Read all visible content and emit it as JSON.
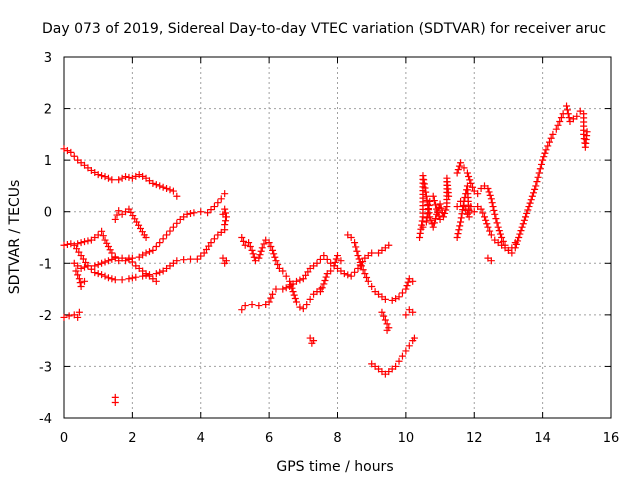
{
  "chart_data": {
    "type": "scatter",
    "title": "Day 073 of 2019, Sidereal Day-to-day VTEC variation (SDTVAR) for receiver aruc",
    "xlabel": "GPS time / hours",
    "ylabel": "SDTVAR / TECUs",
    "xlim": [
      0,
      16
    ],
    "ylim": [
      -4,
      3
    ],
    "xticks": [
      "0",
      "2",
      "4",
      "6",
      "8",
      "10",
      "12",
      "14",
      "16"
    ],
    "yticks": [
      "-4",
      "-3",
      "-2",
      "-1",
      "0",
      "1",
      "2",
      "3"
    ],
    "grid": true,
    "marker": "+",
    "color": "#ff0000",
    "series": [
      {
        "points": [
          [
            0.0,
            1.22
          ],
          [
            0.2,
            1.15
          ],
          [
            0.4,
            1.0
          ],
          [
            0.6,
            0.9
          ],
          [
            0.8,
            0.8
          ],
          [
            1.0,
            0.72
          ],
          [
            1.2,
            0.68
          ],
          [
            1.4,
            0.62
          ],
          [
            1.6,
            0.62
          ],
          [
            1.8,
            0.68
          ],
          [
            2.0,
            0.65
          ],
          [
            2.2,
            0.72
          ],
          [
            2.4,
            0.65
          ],
          [
            2.6,
            0.55
          ],
          [
            2.8,
            0.5
          ],
          [
            3.0,
            0.45
          ],
          [
            3.2,
            0.4
          ],
          [
            3.3,
            0.3
          ]
        ]
      },
      {
        "points": [
          [
            0.0,
            -0.65
          ],
          [
            0.2,
            -0.62
          ],
          [
            0.4,
            -0.62
          ],
          [
            0.6,
            -0.58
          ],
          [
            0.8,
            -0.55
          ],
          [
            1.0,
            -0.45
          ],
          [
            1.1,
            -0.38
          ],
          [
            1.2,
            -0.55
          ],
          [
            1.4,
            -0.8
          ],
          [
            1.6,
            -0.95
          ],
          [
            1.8,
            -0.95
          ],
          [
            2.0,
            -0.9
          ],
          [
            2.2,
            -0.88
          ],
          [
            2.4,
            -0.8
          ],
          [
            2.6,
            -0.75
          ],
          [
            2.8,
            -0.6
          ],
          [
            3.0,
            -0.45
          ],
          [
            3.2,
            -0.3
          ],
          [
            3.4,
            -0.15
          ],
          [
            3.6,
            -0.05
          ],
          [
            3.8,
            -0.02
          ],
          [
            4.0,
            0.0
          ],
          [
            4.2,
            -0.02
          ],
          [
            4.4,
            0.1
          ],
          [
            4.6,
            0.25
          ],
          [
            4.7,
            0.35
          ]
        ]
      },
      {
        "points": [
          [
            0.3,
            -0.65
          ],
          [
            0.5,
            -0.85
          ],
          [
            0.7,
            -1.05
          ],
          [
            0.9,
            -1.18
          ],
          [
            1.1,
            -1.22
          ],
          [
            1.3,
            -1.28
          ],
          [
            1.5,
            -1.32
          ],
          [
            1.7,
            -1.32
          ],
          [
            1.9,
            -1.3
          ],
          [
            2.1,
            -1.27
          ],
          [
            2.3,
            -1.25
          ],
          [
            2.5,
            -1.22
          ],
          [
            2.7,
            -1.2
          ],
          [
            2.9,
            -1.15
          ],
          [
            3.1,
            -1.05
          ],
          [
            3.3,
            -0.95
          ],
          [
            3.5,
            -0.93
          ],
          [
            3.7,
            -0.92
          ],
          [
            3.9,
            -0.92
          ],
          [
            4.1,
            -0.8
          ],
          [
            4.3,
            -0.6
          ],
          [
            4.5,
            -0.45
          ],
          [
            4.7,
            -0.35
          ]
        ]
      },
      {
        "points": [
          [
            0.3,
            -1.0
          ],
          [
            0.5,
            -1.1
          ],
          [
            0.7,
            -1.05
          ],
          [
            0.9,
            -1.05
          ],
          [
            1.1,
            -1.0
          ],
          [
            1.3,
            -0.95
          ],
          [
            1.5,
            -0.9
          ],
          [
            1.7,
            -0.9
          ],
          [
            1.9,
            -0.9
          ],
          [
            2.1,
            -1.05
          ],
          [
            2.3,
            -1.15
          ],
          [
            2.5,
            -1.25
          ],
          [
            2.7,
            -1.35
          ]
        ]
      },
      {
        "points": [
          [
            0.0,
            -2.05
          ],
          [
            0.15,
            -2.02
          ],
          [
            0.3,
            -2.0
          ],
          [
            0.4,
            -2.05
          ],
          [
            0.45,
            -1.95
          ]
        ]
      },
      {
        "points": [
          [
            0.35,
            -1.15
          ],
          [
            0.45,
            -1.3
          ],
          [
            0.5,
            -1.45
          ],
          [
            0.6,
            -1.35
          ]
        ]
      },
      {
        "points": [
          [
            1.5,
            -3.6
          ],
          [
            1.5,
            -3.7
          ]
        ]
      },
      {
        "points": [
          [
            1.5,
            -0.15
          ],
          [
            1.6,
            0.02
          ],
          [
            1.7,
            -0.05
          ],
          [
            1.8,
            0.0
          ],
          [
            1.9,
            0.05
          ],
          [
            2.35,
            -0.45
          ],
          [
            2.4,
            -0.5
          ]
        ]
      },
      {
        "points": [
          [
            4.65,
            -0.9
          ],
          [
            4.7,
            -1.0
          ],
          [
            4.75,
            -0.95
          ],
          [
            4.65,
            -0.05
          ],
          [
            4.7,
            0.05
          ],
          [
            4.75,
            -0.1
          ],
          [
            4.7,
            -0.25
          ]
        ]
      },
      {
        "points": [
          [
            5.2,
            -0.5
          ],
          [
            5.3,
            -0.65
          ],
          [
            5.4,
            -0.6
          ],
          [
            5.5,
            -0.75
          ],
          [
            5.6,
            -0.95
          ],
          [
            5.7,
            -0.9
          ],
          [
            5.8,
            -0.7
          ],
          [
            5.9,
            -0.55
          ],
          [
            6.0,
            -0.6
          ],
          [
            6.1,
            -0.75
          ],
          [
            6.2,
            -0.95
          ],
          [
            6.3,
            -1.1
          ],
          [
            6.4,
            -1.15
          ],
          [
            6.5,
            -1.25
          ],
          [
            6.6,
            -1.35
          ],
          [
            6.7,
            -1.55
          ],
          [
            6.8,
            -1.75
          ],
          [
            6.9,
            -1.85
          ],
          [
            7.0,
            -1.88
          ],
          [
            7.1,
            -1.8
          ],
          [
            7.2,
            -1.7
          ],
          [
            7.3,
            -1.6
          ],
          [
            7.4,
            -1.55
          ],
          [
            7.5,
            -1.5
          ]
        ]
      },
      {
        "points": [
          [
            5.2,
            -1.9
          ],
          [
            5.3,
            -1.82
          ],
          [
            5.5,
            -1.8
          ],
          [
            5.7,
            -1.82
          ],
          [
            5.9,
            -1.8
          ],
          [
            6.0,
            -1.75
          ],
          [
            6.1,
            -1.6
          ],
          [
            6.2,
            -1.5
          ],
          [
            6.4,
            -1.5
          ],
          [
            6.6,
            -1.45
          ],
          [
            6.8,
            -1.35
          ],
          [
            7.0,
            -1.3
          ],
          [
            7.2,
            -1.1
          ],
          [
            7.4,
            -1.0
          ],
          [
            7.6,
            -0.85
          ],
          [
            7.8,
            -1.0
          ],
          [
            8.0,
            -1.1
          ],
          [
            8.2,
            -1.2
          ],
          [
            8.4,
            -1.25
          ],
          [
            8.6,
            -1.1
          ],
          [
            8.8,
            -0.9
          ],
          [
            9.0,
            -0.8
          ],
          [
            9.2,
            -0.8
          ],
          [
            9.4,
            -0.7
          ],
          [
            9.5,
            -0.65
          ]
        ]
      },
      {
        "points": [
          [
            7.2,
            -2.45
          ],
          [
            7.25,
            -2.55
          ],
          [
            7.3,
            -2.5
          ]
        ]
      },
      {
        "points": [
          [
            7.5,
            -1.55
          ],
          [
            7.6,
            -1.4
          ],
          [
            7.7,
            -1.2
          ],
          [
            7.8,
            -1.15
          ],
          [
            7.9,
            -1.05
          ],
          [
            8.0,
            -0.85
          ],
          [
            8.1,
            -0.95
          ]
        ]
      },
      {
        "points": [
          [
            8.3,
            -0.45
          ],
          [
            8.4,
            -0.5
          ],
          [
            8.5,
            -0.6
          ],
          [
            8.6,
            -0.85
          ],
          [
            8.7,
            -1.05
          ],
          [
            8.8,
            -1.2
          ],
          [
            8.9,
            -1.35
          ],
          [
            9.0,
            -1.45
          ],
          [
            9.1,
            -1.55
          ],
          [
            9.2,
            -1.6
          ],
          [
            9.3,
            -1.65
          ],
          [
            9.4,
            -1.7
          ],
          [
            9.6,
            -1.72
          ],
          [
            9.8,
            -1.65
          ],
          [
            10.0,
            -1.5
          ],
          [
            10.1,
            -1.3
          ],
          [
            10.2,
            -1.35
          ]
        ]
      },
      {
        "points": [
          [
            9.3,
            -1.95
          ],
          [
            9.4,
            -2.1
          ],
          [
            9.5,
            -2.25
          ],
          [
            9.45,
            -2.3
          ]
        ]
      },
      {
        "points": [
          [
            9.0,
            -2.95
          ],
          [
            9.1,
            -3.0
          ],
          [
            9.2,
            -3.05
          ],
          [
            9.3,
            -3.1
          ],
          [
            9.4,
            -3.15
          ],
          [
            9.5,
            -3.1
          ],
          [
            9.6,
            -3.05
          ],
          [
            9.7,
            -3.0
          ],
          [
            9.8,
            -2.9
          ],
          [
            9.9,
            -2.8
          ],
          [
            10.0,
            -2.7
          ],
          [
            10.1,
            -2.6
          ],
          [
            10.2,
            -2.5
          ],
          [
            10.25,
            -2.45
          ]
        ]
      },
      {
        "points": [
          [
            10.0,
            -2.0
          ],
          [
            10.1,
            -1.9
          ],
          [
            10.2,
            -1.95
          ]
        ]
      },
      {
        "points": [
          [
            10.4,
            -0.5
          ],
          [
            10.5,
            -0.1
          ],
          [
            10.5,
            0.7
          ],
          [
            10.6,
            0.3
          ],
          [
            10.7,
            -0.1
          ],
          [
            10.8,
            -0.3
          ],
          [
            10.9,
            -0.05
          ],
          [
            11.0,
            0.15
          ],
          [
            11.1,
            -0.1
          ],
          [
            11.2,
            0.1
          ],
          [
            11.2,
            0.65
          ],
          [
            11.25,
            0.3
          ]
        ]
      },
      {
        "points": [
          [
            10.5,
            -0.3
          ],
          [
            10.6,
            -0.2
          ],
          [
            10.7,
            0.2
          ],
          [
            10.8,
            0.3
          ],
          [
            10.9,
            0.05
          ],
          [
            11.0,
            -0.15
          ]
        ]
      },
      {
        "points": [
          [
            11.5,
            0.75
          ],
          [
            11.6,
            0.95
          ],
          [
            11.7,
            0.85
          ],
          [
            11.8,
            0.75
          ],
          [
            11.9,
            0.55
          ],
          [
            12.0,
            0.4
          ],
          [
            12.1,
            0.35
          ],
          [
            12.2,
            0.45
          ],
          [
            12.3,
            0.5
          ],
          [
            12.4,
            0.45
          ],
          [
            12.5,
            0.25
          ],
          [
            12.6,
            -0.05
          ],
          [
            12.7,
            -0.3
          ],
          [
            12.8,
            -0.5
          ],
          [
            12.9,
            -0.65
          ],
          [
            13.0,
            -0.75
          ],
          [
            13.1,
            -0.8
          ],
          [
            13.2,
            -0.7
          ],
          [
            13.3,
            -0.5
          ],
          [
            13.4,
            -0.3
          ],
          [
            13.5,
            -0.1
          ],
          [
            13.6,
            0.1
          ],
          [
            13.7,
            0.3
          ],
          [
            13.8,
            0.5
          ],
          [
            13.9,
            0.75
          ],
          [
            14.0,
            1.0
          ],
          [
            14.1,
            1.2
          ],
          [
            14.2,
            1.35
          ],
          [
            14.3,
            1.5
          ],
          [
            14.4,
            1.6
          ],
          [
            14.5,
            1.75
          ],
          [
            14.6,
            1.9
          ]
        ]
      },
      {
        "points": [
          [
            11.5,
            0.1
          ],
          [
            11.6,
            0.2
          ],
          [
            11.7,
            0.1
          ],
          [
            11.8,
            -0.05
          ],
          [
            11.9,
            0.1
          ],
          [
            12.0,
            0.0
          ],
          [
            12.1,
            0.1
          ],
          [
            12.2,
            0.05
          ],
          [
            12.3,
            -0.1
          ],
          [
            12.4,
            -0.3
          ],
          [
            12.5,
            -0.45
          ],
          [
            12.6,
            -0.55
          ],
          [
            12.7,
            -0.6
          ],
          [
            12.8,
            -0.65
          ],
          [
            12.9,
            -0.7
          ],
          [
            13.0,
            -0.75
          ],
          [
            13.1,
            -0.7
          ],
          [
            13.2,
            -0.6
          ]
        ]
      },
      {
        "points": [
          [
            11.5,
            -0.5
          ],
          [
            11.6,
            -0.2
          ],
          [
            11.7,
            0.2
          ],
          [
            11.8,
            0.5
          ],
          [
            11.85,
            -0.1
          ]
        ]
      },
      {
        "points": [
          [
            12.4,
            -0.9
          ],
          [
            12.5,
            -0.95
          ]
        ]
      },
      {
        "points": [
          [
            14.7,
            2.05
          ],
          [
            14.8,
            1.75
          ],
          [
            15.0,
            1.85
          ],
          [
            15.1,
            1.95
          ],
          [
            15.2,
            1.9
          ],
          [
            15.2,
            1.5
          ],
          [
            15.25,
            1.25
          ],
          [
            15.3,
            1.55
          ]
        ]
      }
    ]
  }
}
